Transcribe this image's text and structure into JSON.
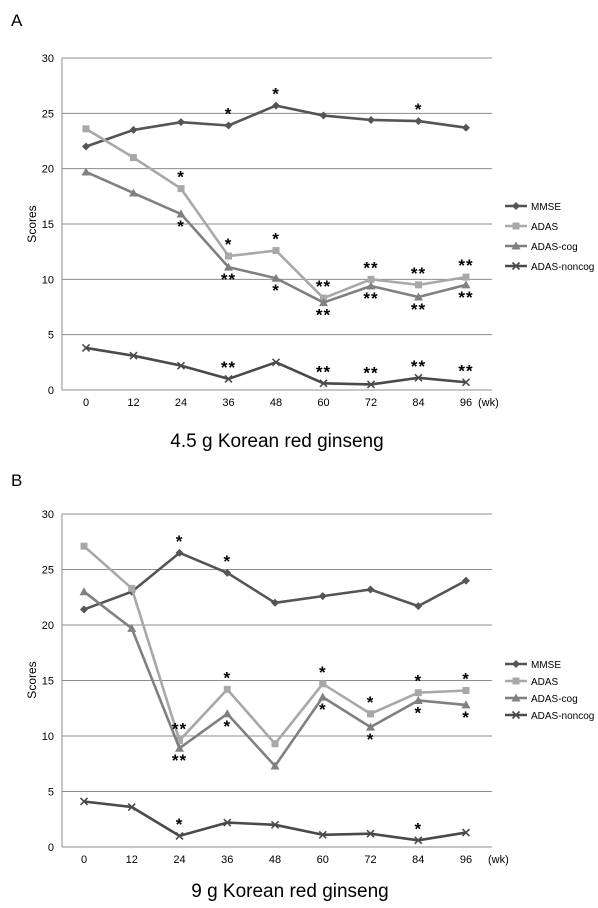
{
  "chart_data": [
    {
      "panel": "A",
      "type": "line",
      "title": "4.5 g Korean red ginseng",
      "xlabel": "",
      "ylabel": "Scores",
      "x_unit": "(wk)",
      "x": [
        0,
        12,
        24,
        36,
        48,
        60,
        72,
        84,
        96
      ],
      "ylim": [
        0,
        30
      ],
      "yticks": [
        0,
        5,
        10,
        15,
        20,
        25,
        30
      ],
      "grid": "horizontal",
      "legend": "right",
      "series": [
        {
          "name": "MMSE",
          "color": "#555555",
          "marker": "diamond",
          "values": [
            22.0,
            23.5,
            24.2,
            23.9,
            25.7,
            24.8,
            24.4,
            24.3,
            23.7
          ]
        },
        {
          "name": "ADAS",
          "color": "#a8a8a8",
          "marker": "square",
          "values": [
            23.6,
            21.0,
            18.2,
            12.1,
            12.6,
            8.3,
            10.0,
            9.5,
            10.2
          ]
        },
        {
          "name": "ADAS-cog",
          "color": "#808080",
          "marker": "triangle",
          "values": [
            19.7,
            17.8,
            15.9,
            11.1,
            10.1,
            7.9,
            9.4,
            8.4,
            9.5
          ]
        },
        {
          "name": "ADAS-noncog",
          "color": "#4a4a4a",
          "marker": "x",
          "values": [
            3.8,
            3.1,
            2.2,
            1.0,
            2.5,
            0.6,
            0.5,
            1.1,
            0.7
          ]
        }
      ],
      "annotations": [
        {
          "x": 36,
          "y": 23.9,
          "pos": "above",
          "text": "*"
        },
        {
          "x": 48,
          "y": 25.7,
          "pos": "above",
          "text": "*"
        },
        {
          "x": 84,
          "y": 24.3,
          "pos": "above",
          "text": "*"
        },
        {
          "x": 24,
          "y": 18.2,
          "pos": "above",
          "text": "*"
        },
        {
          "x": 36,
          "y": 12.1,
          "pos": "above",
          "text": "*"
        },
        {
          "x": 48,
          "y": 12.6,
          "pos": "above",
          "text": "*"
        },
        {
          "x": 60,
          "y": 8.3,
          "pos": "above",
          "text": "**"
        },
        {
          "x": 72,
          "y": 10.0,
          "pos": "above",
          "text": "**"
        },
        {
          "x": 84,
          "y": 9.5,
          "pos": "above",
          "text": "**"
        },
        {
          "x": 96,
          "y": 10.2,
          "pos": "above",
          "text": "**"
        },
        {
          "x": 24,
          "y": 15.9,
          "pos": "below",
          "text": "*"
        },
        {
          "x": 36,
          "y": 11.1,
          "pos": "below",
          "text": "**"
        },
        {
          "x": 48,
          "y": 10.1,
          "pos": "below",
          "text": "*"
        },
        {
          "x": 60,
          "y": 7.9,
          "pos": "below",
          "text": "**"
        },
        {
          "x": 72,
          "y": 9.4,
          "pos": "below",
          "text": "**"
        },
        {
          "x": 84,
          "y": 8.4,
          "pos": "below",
          "text": "**"
        },
        {
          "x": 96,
          "y": 9.5,
          "pos": "below",
          "text": "**"
        },
        {
          "x": 36,
          "y": 1.0,
          "pos": "above",
          "text": "**"
        },
        {
          "x": 60,
          "y": 0.6,
          "pos": "above",
          "text": "**"
        },
        {
          "x": 72,
          "y": 0.5,
          "pos": "above",
          "text": "**"
        },
        {
          "x": 84,
          "y": 1.1,
          "pos": "above",
          "text": "**"
        },
        {
          "x": 96,
          "y": 0.7,
          "pos": "above",
          "text": "**"
        }
      ]
    },
    {
      "panel": "B",
      "type": "line",
      "title": "9 g Korean red ginseng",
      "xlabel": "",
      "ylabel": "Scores",
      "x_unit": "(wk)",
      "x": [
        0,
        12,
        24,
        36,
        48,
        60,
        72,
        84,
        96
      ],
      "ylim": [
        0,
        30
      ],
      "yticks": [
        0,
        5,
        10,
        15,
        20,
        25,
        30
      ],
      "grid": "horizontal",
      "legend": "right",
      "series": [
        {
          "name": "MMSE",
          "color": "#555555",
          "marker": "diamond",
          "values": [
            21.4,
            23.0,
            26.5,
            24.7,
            22.0,
            22.6,
            23.2,
            21.7,
            24.0
          ]
        },
        {
          "name": "ADAS",
          "color": "#a8a8a8",
          "marker": "square",
          "values": [
            27.1,
            23.3,
            9.6,
            14.2,
            9.3,
            14.7,
            12.0,
            13.9,
            14.1
          ]
        },
        {
          "name": "ADAS-cog",
          "color": "#808080",
          "marker": "triangle",
          "values": [
            23.0,
            19.7,
            8.9,
            12.0,
            7.3,
            13.5,
            10.8,
            13.2,
            12.8
          ]
        },
        {
          "name": "ADAS-noncog",
          "color": "#4a4a4a",
          "marker": "x",
          "values": [
            4.1,
            3.6,
            1.0,
            2.2,
            2.0,
            1.1,
            1.2,
            0.6,
            1.3
          ]
        }
      ],
      "annotations": [
        {
          "x": 24,
          "y": 26.5,
          "pos": "above",
          "text": "*"
        },
        {
          "x": 36,
          "y": 24.7,
          "pos": "above",
          "text": "*"
        },
        {
          "x": 24,
          "y": 9.6,
          "pos": "above",
          "text": "**"
        },
        {
          "x": 36,
          "y": 14.2,
          "pos": "above",
          "text": "*"
        },
        {
          "x": 60,
          "y": 14.7,
          "pos": "above",
          "text": "*"
        },
        {
          "x": 72,
          "y": 12.0,
          "pos": "above",
          "text": "*"
        },
        {
          "x": 84,
          "y": 13.9,
          "pos": "above",
          "text": "*"
        },
        {
          "x": 96,
          "y": 14.1,
          "pos": "above",
          "text": "*"
        },
        {
          "x": 24,
          "y": 8.9,
          "pos": "below",
          "text": "**"
        },
        {
          "x": 36,
          "y": 12.0,
          "pos": "below",
          "text": "*"
        },
        {
          "x": 60,
          "y": 13.5,
          "pos": "below",
          "text": "*"
        },
        {
          "x": 72,
          "y": 10.8,
          "pos": "below",
          "text": "*"
        },
        {
          "x": 84,
          "y": 13.2,
          "pos": "below",
          "text": "*"
        },
        {
          "x": 96,
          "y": 12.8,
          "pos": "below",
          "text": "*"
        },
        {
          "x": 24,
          "y": 1.0,
          "pos": "above",
          "text": "*"
        },
        {
          "x": 84,
          "y": 0.6,
          "pos": "above",
          "text": "*"
        }
      ]
    }
  ]
}
